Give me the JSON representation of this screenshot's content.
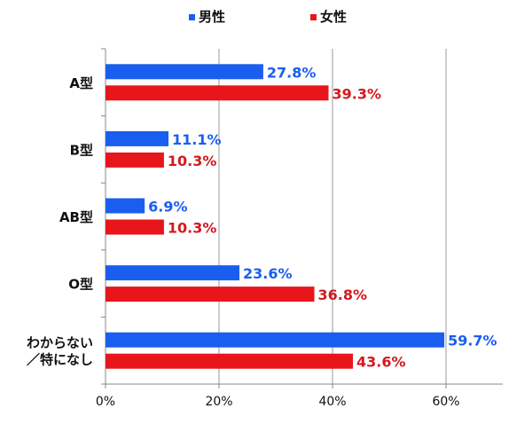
{
  "chart_data": {
    "type": "bar",
    "orientation": "horizontal",
    "categories": [
      "A型",
      "B型",
      "AB型",
      "O型",
      "わからない／特になし"
    ],
    "category_lines": [
      [
        "A型"
      ],
      [
        "B型"
      ],
      [
        "AB型"
      ],
      [
        "O型"
      ],
      [
        "わからない",
        "／特になし"
      ]
    ],
    "series": [
      {
        "name": "男性",
        "values": [
          27.8,
          11.1,
          6.9,
          23.6,
          59.7
        ],
        "labels": [
          "27.8%",
          "11.1%",
          "6.9%",
          "23.6%",
          "59.7%"
        ],
        "color": "#1a5ef0",
        "label_color": "#1a5ef0"
      },
      {
        "name": "女性",
        "values": [
          39.3,
          10.3,
          10.3,
          36.8,
          43.6
        ],
        "labels": [
          "39.3%",
          "10.3%",
          "10.3%",
          "36.8%",
          "43.6%"
        ],
        "color": "#e8151b",
        "label_color": "#d21a1f"
      }
    ],
    "xlim": [
      0,
      70
    ],
    "xticks": [
      0,
      20,
      40,
      60
    ],
    "xtick_labels": [
      "0%",
      "20%",
      "40%",
      "60%"
    ],
    "grid": true,
    "legend": "top-center"
  }
}
